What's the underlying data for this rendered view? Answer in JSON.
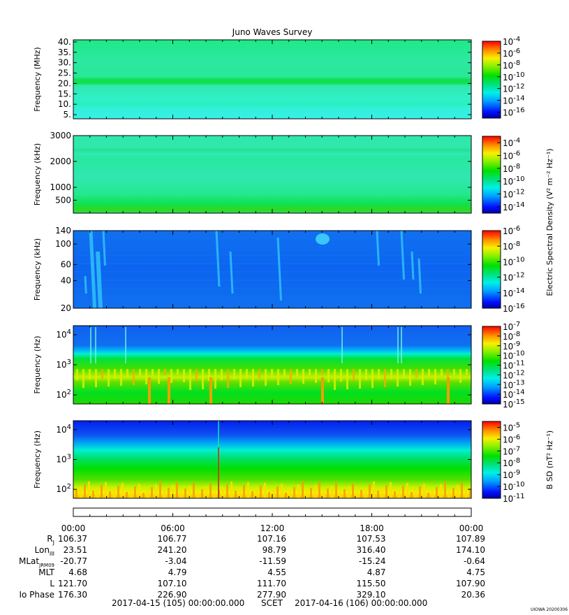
{
  "chart_data": {
    "type": "heatmap",
    "title": "Juno Waves Survey",
    "panels": [
      {
        "id": "p1",
        "ylabel": "Frequency (MHz)",
        "yscale": "linear",
        "ylim": [
          3,
          41
        ],
        "yticks": [
          {
            "v": 40,
            "t": "40."
          },
          {
            "v": 35,
            "t": "35."
          },
          {
            "v": 30,
            "t": "30."
          },
          {
            "v": 25,
            "t": "25."
          },
          {
            "v": 20,
            "t": "20."
          },
          {
            "v": 15,
            "t": "15."
          },
          {
            "v": 10,
            "t": "10."
          },
          {
            "v": 5,
            "t": "5."
          }
        ],
        "cbar_ticks": [
          {
            "v": -4,
            "t": "10",
            "e": "-4"
          },
          {
            "v": -6,
            "t": "10",
            "e": "-6"
          },
          {
            "v": -8,
            "t": "10",
            "e": "-8"
          },
          {
            "v": -10,
            "t": "10",
            "e": "-10"
          },
          {
            "v": -12,
            "t": "10",
            "e": "-12"
          },
          {
            "v": -14,
            "t": "10",
            "e": "-14"
          },
          {
            "v": -16,
            "t": "10",
            "e": "-16"
          }
        ],
        "cbar_range": [
          -17,
          -4
        ]
      },
      {
        "id": "p2",
        "ylabel": "Frequency (kHz)",
        "yscale": "linear",
        "ylim": [
          0,
          3000
        ],
        "yticks": [
          {
            "v": 3000,
            "t": "3000"
          },
          {
            "v": 2000,
            "t": "2000"
          },
          {
            "v": 1000,
            "t": "1000"
          },
          {
            "v": 500,
            "t": "500"
          }
        ],
        "cbar_ticks": [
          {
            "v": -4,
            "t": "10",
            "e": "-4"
          },
          {
            "v": -6,
            "t": "10",
            "e": "-6"
          },
          {
            "v": -8,
            "t": "10",
            "e": "-8"
          },
          {
            "v": -10,
            "t": "10",
            "e": "-10"
          },
          {
            "v": -12,
            "t": "10",
            "e": "-12"
          },
          {
            "v": -14,
            "t": "10",
            "e": "-14"
          }
        ],
        "cbar_range": [
          -15,
          -3
        ]
      },
      {
        "id": "p3",
        "ylabel": "Frequency (kHz)",
        "yscale": "log",
        "ylim": [
          20,
          140
        ],
        "yticks": [
          {
            "v": 140,
            "t": "140"
          },
          {
            "v": 100,
            "t": "100"
          },
          {
            "v": 60,
            "t": "60"
          },
          {
            "v": 40,
            "t": "40"
          },
          {
            "v": 20,
            "t": "20"
          }
        ],
        "cbar_ticks": [
          {
            "v": -6,
            "t": "10",
            "e": "-6"
          },
          {
            "v": -8,
            "t": "10",
            "e": "-8"
          },
          {
            "v": -10,
            "t": "10",
            "e": "-10"
          },
          {
            "v": -12,
            "t": "10",
            "e": "-12"
          },
          {
            "v": -14,
            "t": "10",
            "e": "-14"
          },
          {
            "v": -16,
            "t": "10",
            "e": "-16"
          }
        ],
        "cbar_range": [
          -16,
          -6
        ]
      },
      {
        "id": "p4",
        "ylabel": "Frequency (Hz)",
        "yscale": "log",
        "ylim": [
          50,
          20000
        ],
        "yticks": [
          {
            "v": 10000,
            "t": "10",
            "e": "4"
          },
          {
            "v": 1000,
            "t": "10",
            "e": "3"
          },
          {
            "v": 100,
            "t": "10",
            "e": "2"
          }
        ],
        "cbar_ticks": [
          {
            "v": -7,
            "t": "10",
            "e": "-7"
          },
          {
            "v": -8,
            "t": "10",
            "e": "-8"
          },
          {
            "v": -9,
            "t": "10",
            "e": "-9"
          },
          {
            "v": -10,
            "t": "10",
            "e": "-10"
          },
          {
            "v": -11,
            "t": "10",
            "e": "-11"
          },
          {
            "v": -12,
            "t": "10",
            "e": "-12"
          },
          {
            "v": -13,
            "t": "10",
            "e": "-13"
          },
          {
            "v": -14,
            "t": "10",
            "e": "-14"
          },
          {
            "v": -15,
            "t": "10",
            "e": "-15"
          }
        ],
        "cbar_range": [
          -15,
          -7
        ]
      },
      {
        "id": "p5",
        "ylabel": "Frequency (Hz)",
        "yscale": "log",
        "ylim": [
          50,
          20000
        ],
        "yticks": [
          {
            "v": 10000,
            "t": "10",
            "e": "4"
          },
          {
            "v": 1000,
            "t": "10",
            "e": "3"
          },
          {
            "v": 100,
            "t": "10",
            "e": "2"
          }
        ],
        "cbar_ticks": [
          {
            "v": -5,
            "t": "10",
            "e": "-5"
          },
          {
            "v": -6,
            "t": "10",
            "e": "-6"
          },
          {
            "v": -7,
            "t": "10",
            "e": "-7"
          },
          {
            "v": -8,
            "t": "10",
            "e": "-8"
          },
          {
            "v": -9,
            "t": "10",
            "e": "-9"
          },
          {
            "v": -10,
            "t": "10",
            "e": "-10"
          },
          {
            "v": -11,
            "t": "10",
            "e": "-11"
          }
        ],
        "cbar_range": [
          -11,
          -4.5
        ]
      }
    ],
    "cbar_label_shared": "Electric Spectral Density (V² m⁻² Hz⁻¹)",
    "cbar_label_bottom": "B SD (nT² Hz⁻¹)",
    "x_ticks": [
      "00:00",
      "06:00",
      "12:00",
      "18:00",
      "00:00"
    ],
    "ephemeris": [
      {
        "label": "RJ",
        "values": [
          "106.37",
          "106.77",
          "107.16",
          "107.53",
          "107.89"
        ]
      },
      {
        "label": "LonIII",
        "values": [
          "23.51",
          "241.20",
          "98.79",
          "316.40",
          "174.10"
        ]
      },
      {
        "label": "MLatJRM09",
        "values": [
          "-20.77",
          "-3.04",
          "-11.59",
          "-15.24",
          "-0.64"
        ]
      },
      {
        "label": "MLT",
        "values": [
          "4.68",
          "4.79",
          "4.55",
          "4.87",
          "4.75"
        ]
      },
      {
        "label": "L",
        "values": [
          "121.70",
          "107.10",
          "111.70",
          "115.50",
          "107.90"
        ]
      },
      {
        "label": "Io Phase",
        "values": [
          "176.30",
          "226.90",
          "277.90",
          "329.10",
          "20.36"
        ]
      }
    ],
    "time_range": {
      "start": "2017-04-15 (105) 00:00:00.000",
      "scet_label": "SCET",
      "end": "2017-04-16 (106) 00:00:00.000"
    },
    "credit": "UIOWA 20200306"
  }
}
